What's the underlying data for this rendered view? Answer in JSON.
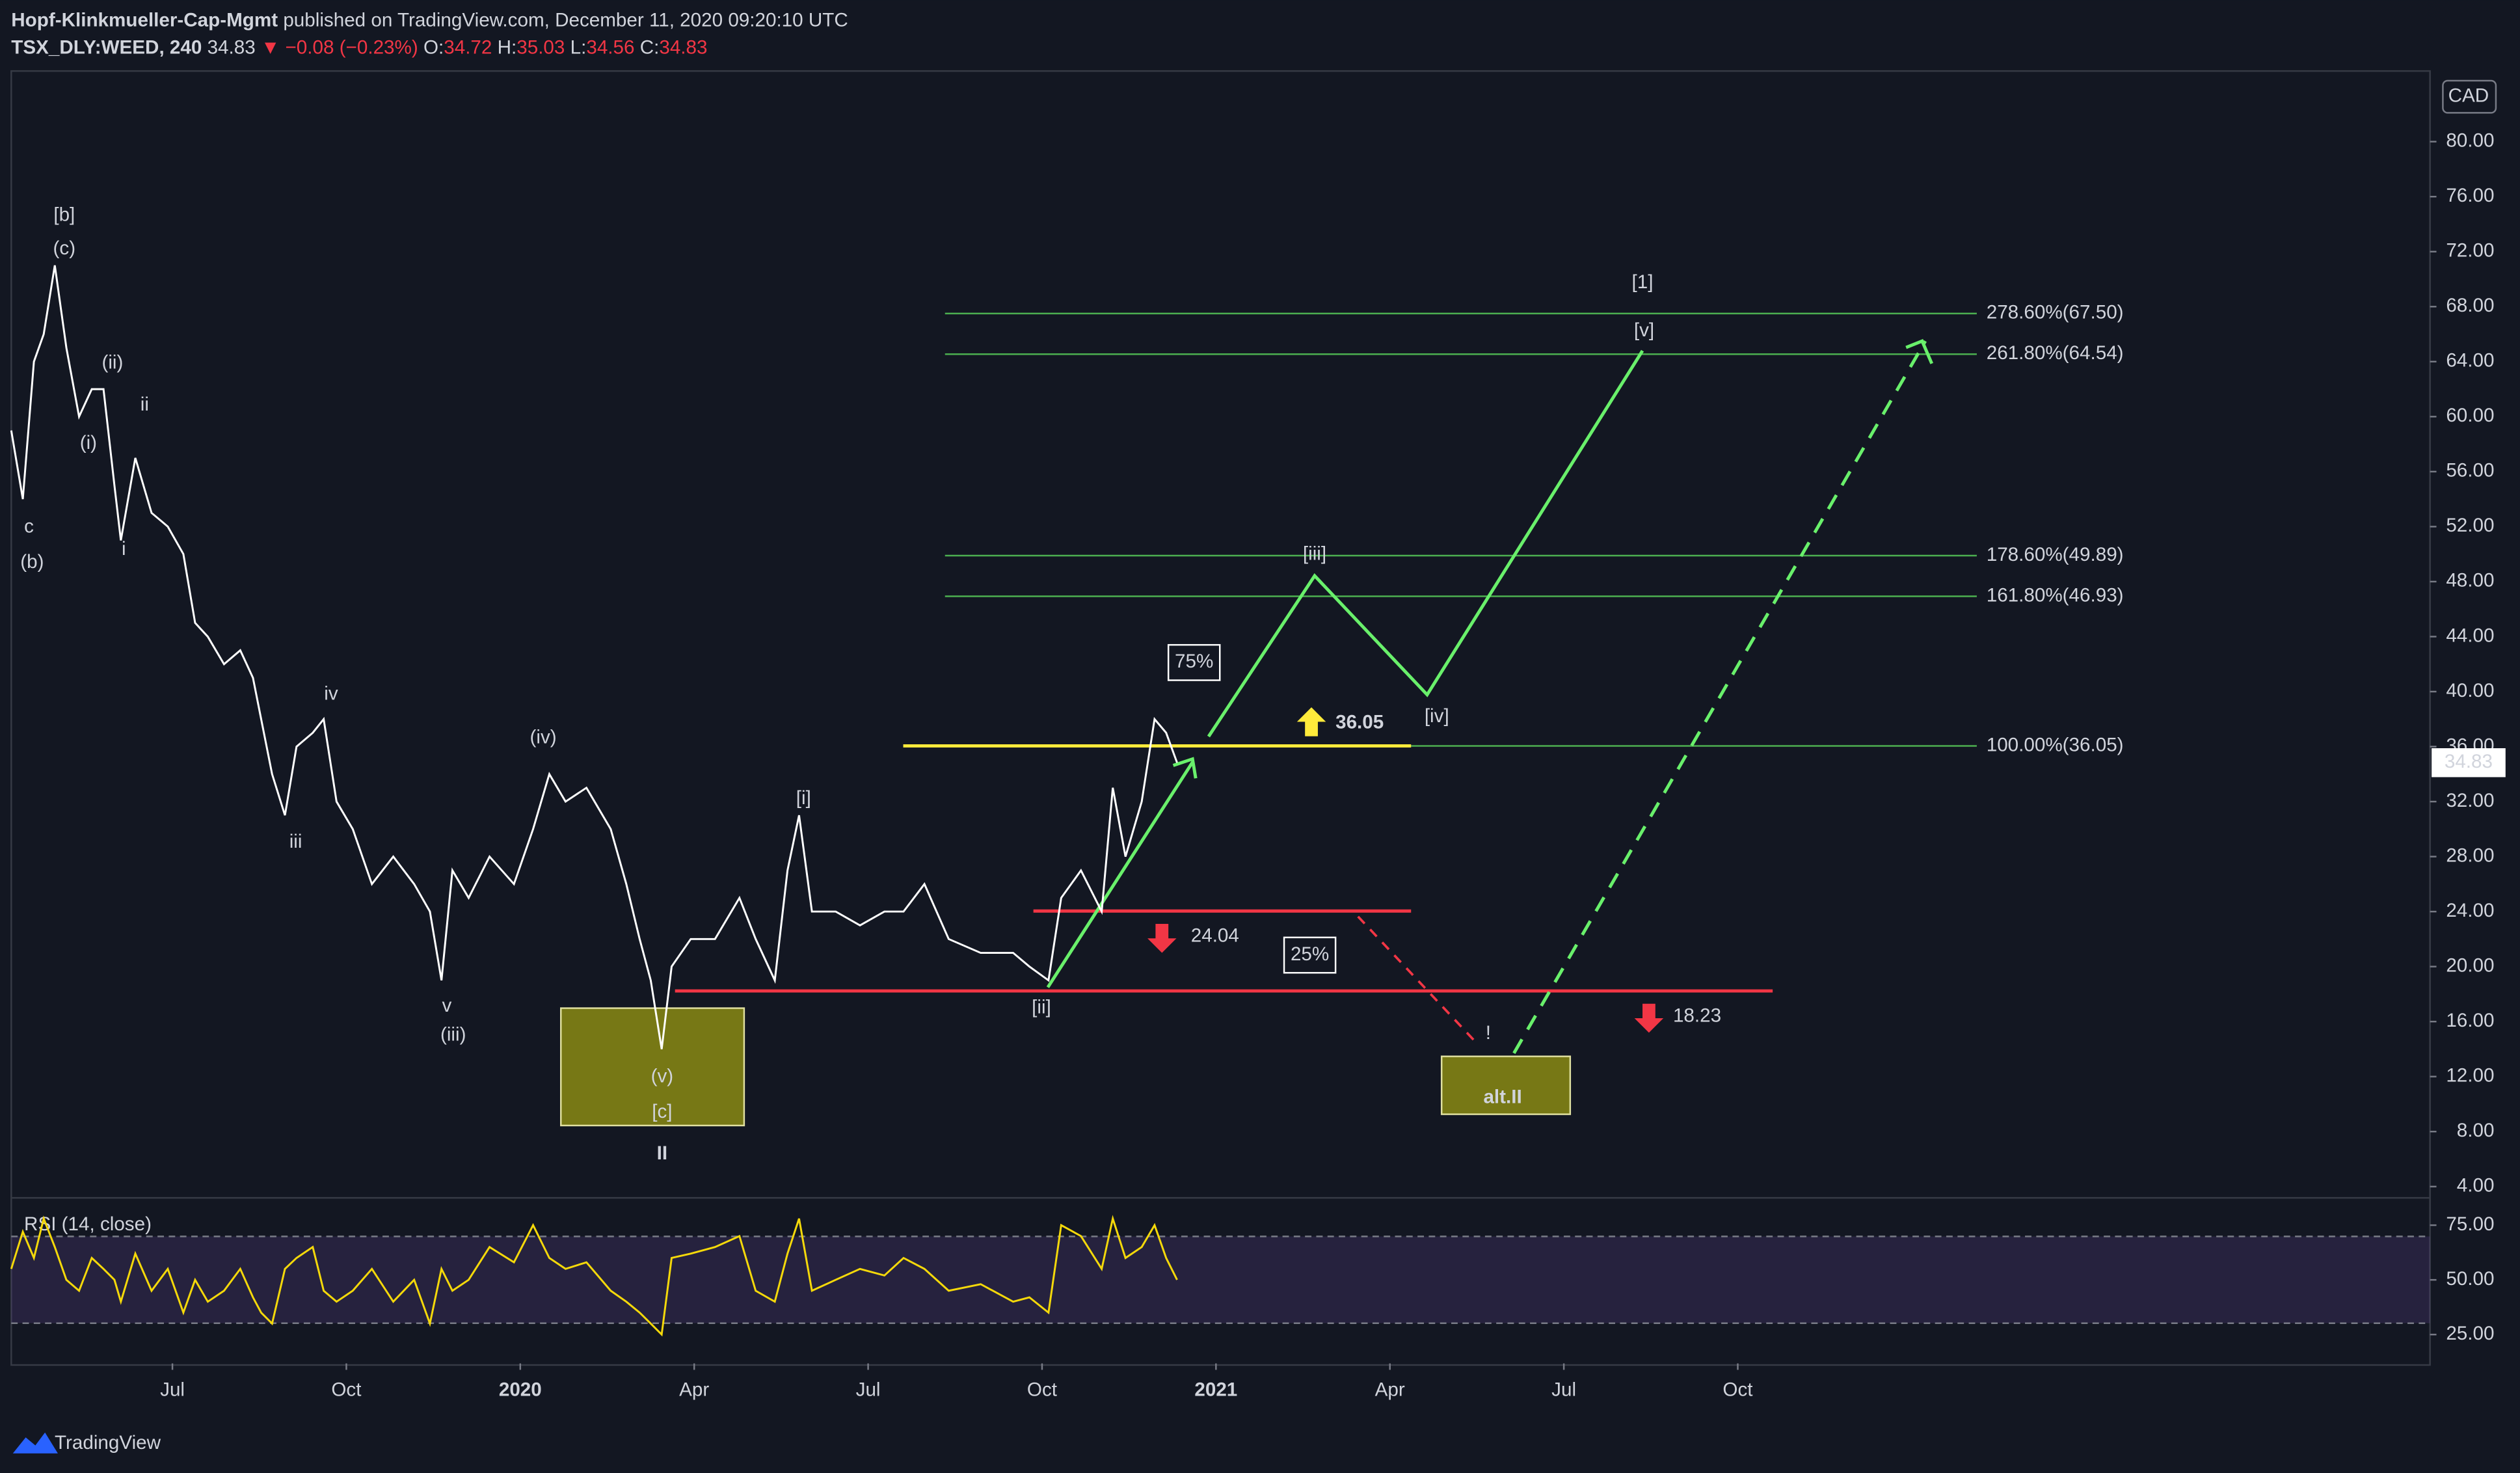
{
  "header": {
    "author": "Hopf-Klinkmueller-Cap-Mgmt",
    "published": "published on TradingView.com, December 11, 2020 09:20:10 UTC",
    "symbol": "TSX_DLY:WEED, 240",
    "change": "▼ −0.08 (−0.23%)",
    "ohlc": [
      {
        "key": "O:",
        "value": "34.72"
      },
      {
        "key": "H:",
        "value": "35.03"
      },
      {
        "key": "L:",
        "value": "34.56"
      },
      {
        "key": "C:",
        "value": "34.83"
      }
    ]
  },
  "footer": {
    "brand": "TradingView"
  },
  "chart_data": [
    {
      "type": "line",
      "currency": "CAD",
      "x": [
        3.22,
        3.42,
        3.61,
        3.78,
        3.97,
        4.17,
        4.39,
        4.61,
        4.81,
        5.0,
        5.11,
        5.36,
        5.64,
        5.92,
        6.19,
        6.39,
        6.61,
        6.89,
        7.17,
        7.39,
        7.53,
        7.72,
        7.94,
        8.14,
        8.42,
        8.61,
        8.83,
        9.11,
        9.44,
        9.81,
        10.17,
        10.44,
        10.64,
        10.83,
        11.11,
        11.47,
        11.89,
        12.22,
        12.5,
        12.78,
        13.14,
        13.56,
        13.83,
        14.06,
        14.25,
        14.44,
        14.61,
        14.94,
        15.36,
        15.78,
        16.06,
        16.39,
        16.61,
        16.81,
        17.03,
        17.44,
        17.86,
        18.28,
        18.61,
        18.97,
        19.39,
        19.94,
        20.5,
        20.78,
        21.11,
        21.33,
        21.67,
        22.03,
        22.22,
        22.44,
        22.72,
        22.94,
        23.14,
        23.33
      ],
      "series": [
        {
          "color": "#ffffff",
          "values": [
            59,
            54,
            64,
            66,
            71,
            65,
            60,
            62,
            62,
            55,
            51,
            57,
            53,
            52,
            50,
            45,
            44,
            42,
            43,
            41,
            38,
            34,
            31,
            36,
            37,
            38,
            32,
            30,
            26,
            28,
            26,
            24,
            19,
            27,
            25,
            28,
            26,
            30,
            34,
            32,
            33,
            30,
            26,
            22,
            19,
            14,
            20,
            22,
            22,
            25,
            22,
            19,
            27,
            31,
            24,
            24,
            23,
            24,
            24,
            26,
            22,
            21,
            21,
            20,
            19,
            25,
            27,
            24,
            33,
            28,
            32,
            38,
            37,
            34.83
          ]
        }
      ],
      "xlim": [
        3.22,
        44.94
      ],
      "xticks": [
        {
          "value": 6,
          "label": "Jul"
        },
        {
          "value": 9,
          "label": "Oct"
        },
        {
          "value": 12,
          "label": "2020"
        },
        {
          "value": 15,
          "label": "Apr"
        },
        {
          "value": 18,
          "label": "Jul"
        },
        {
          "value": 21,
          "label": "Oct"
        },
        {
          "value": 24,
          "label": "2021"
        },
        {
          "value": 27,
          "label": "Apr"
        },
        {
          "value": 30,
          "label": "Jul"
        },
        {
          "value": 33,
          "label": "Oct"
        }
      ],
      "ylim": [
        3.18,
        85.02
      ],
      "yticks": [
        {
          "value": 4,
          "label": "4.00"
        },
        {
          "value": 8,
          "label": "8.00"
        },
        {
          "value": 12,
          "label": "12.00"
        },
        {
          "value": 16,
          "label": "16.00"
        },
        {
          "value": 20,
          "label": "20.00"
        },
        {
          "value": 24,
          "label": "24.00"
        },
        {
          "value": 28,
          "label": "28.00"
        },
        {
          "value": 32,
          "label": "32.00"
        },
        {
          "value": 36,
          "label": "36.00"
        },
        {
          "value": 40,
          "label": "40.00"
        },
        {
          "value": 44,
          "label": "44.00"
        },
        {
          "value": 48,
          "label": "48.00"
        },
        {
          "value": 52,
          "label": "52.00"
        },
        {
          "value": 56,
          "label": "56.00"
        },
        {
          "value": 60,
          "label": "60.00"
        },
        {
          "value": 64,
          "label": "64.00"
        },
        {
          "value": 68,
          "label": "68.00"
        },
        {
          "value": 72,
          "label": "72.00"
        },
        {
          "value": 76,
          "label": "76.00"
        },
        {
          "value": 80,
          "label": "80.00"
        }
      ],
      "fib_levels": [
        {
          "value": 67.5,
          "label": "278.60%(67.50)"
        },
        {
          "value": 64.54,
          "label": "261.80%(64.54)"
        },
        {
          "value": 49.89,
          "label": "178.60%(49.89)"
        },
        {
          "value": 46.93,
          "label": "161.80%(46.93)"
        },
        {
          "value": 36.05,
          "label": "100.00%(36.05)"
        }
      ],
      "targets": [
        {
          "value": 36.05,
          "color": "#ffeb3b"
        },
        {
          "value": 24.04,
          "color": "#f23645"
        },
        {
          "value": 18.23,
          "color": "#f23645"
        }
      ],
      "probabilities": [
        "75%",
        "25%"
      ],
      "alt_label": "alt.II",
      "wave_labels": [
        {
          "text": "[b]",
          "color": "#e91e63"
        },
        {
          "text": "(c)",
          "color": "#2196f3"
        },
        {
          "text": "(ii)",
          "color": "#2196f3"
        },
        {
          "text": "ii",
          "color": "#ff9800"
        },
        {
          "text": "(i)",
          "color": "#2196f3"
        },
        {
          "text": "c",
          "color": "#ff9800"
        },
        {
          "text": "i",
          "color": "#ff9800"
        },
        {
          "text": "(b)",
          "color": "#2196f3"
        },
        {
          "text": "iv",
          "color": "#ff9800"
        },
        {
          "text": "(iv)",
          "color": "#2196f3"
        },
        {
          "text": "iii",
          "color": "#ff9800"
        },
        {
          "text": "v",
          "color": "#ff9800"
        },
        {
          "text": "(iii)",
          "color": "#2196f3"
        },
        {
          "text": "[i]",
          "color": "#e91e63"
        },
        {
          "text": "(v)",
          "color": "#2196f3"
        },
        {
          "text": "[c]",
          "color": "#e91e63"
        },
        {
          "text": "II",
          "color": "#29b6f6"
        },
        {
          "text": "[ii]",
          "color": "#e91e63"
        },
        {
          "text": "[iii]",
          "color": "#e91e63"
        },
        {
          "text": "[iv]",
          "color": "#e91e63"
        },
        {
          "text": "[v]",
          "color": "#e91e63"
        },
        {
          "text": "[1]",
          "color": "#4caf50"
        },
        {
          "text": "!",
          "color": "#f23645"
        }
      ]
    },
    {
      "type": "line",
      "title": "RSI (14, close)",
      "series": [
        {
          "color": "#f5d90a",
          "values": [
            55,
            72,
            60,
            78,
            65,
            50,
            45,
            60,
            55,
            50,
            40,
            62,
            45,
            55,
            35,
            50,
            40,
            45,
            55,
            42,
            35,
            30,
            55,
            60,
            65,
            45,
            40,
            45,
            55,
            40,
            50,
            30,
            55,
            45,
            50,
            65,
            58,
            75,
            60,
            55,
            58,
            45,
            40,
            35,
            30,
            25,
            60,
            62,
            65,
            70,
            45,
            40,
            62,
            78,
            45,
            50,
            55,
            52,
            60,
            55,
            45,
            48,
            40,
            42,
            35,
            75,
            70,
            55,
            78,
            60,
            65,
            75,
            60,
            50
          ]
        }
      ],
      "ylim": [
        11.8,
        87.5
      ],
      "yticks": [
        {
          "value": 25,
          "label": "25.00"
        },
        {
          "value": 50,
          "label": "50.00"
        },
        {
          "value": 75,
          "label": "75.00"
        }
      ]
    }
  ]
}
